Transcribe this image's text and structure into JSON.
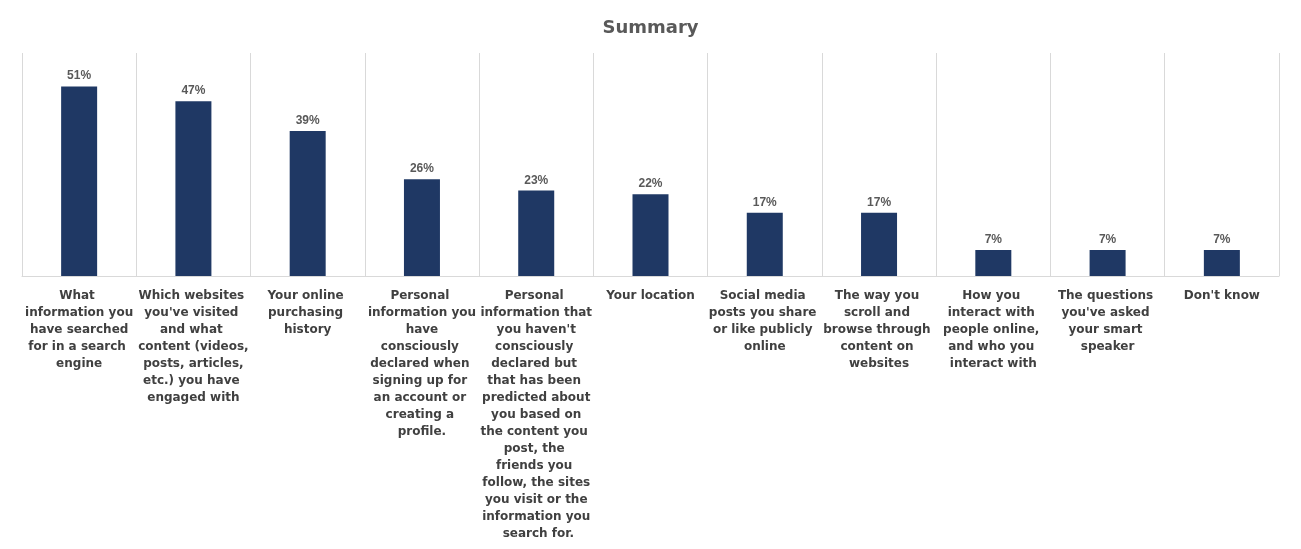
{
  "chart_data": {
    "type": "bar",
    "title": "Summary",
    "categories": [
      "What information you have searched for in a search engine",
      "Which websites you've visited and what content (videos, posts, articles, etc.) you have engaged with",
      "Your online purchasing history",
      "Personal information you have consciously declared when signing up for an account or creating a profile.",
      "Personal information that you haven't consciously declared but that has been predicted about you based on the content you post, the friends you follow, the sites you visit or the information you search for.",
      "Your location",
      "Social media posts you share or like publicly online",
      "The way you scroll and browse through content on websites",
      "How you interact with people online, and who you interact with",
      "The questions you've asked your smart speaker",
      "Don't know"
    ],
    "values": [
      51,
      47,
      39,
      26,
      23,
      22,
      17,
      17,
      7,
      7,
      7
    ],
    "value_labels": [
      "51%",
      "47%",
      "39%",
      "26%",
      "23%",
      "22%",
      "17%",
      "17%",
      "7%",
      "7%",
      "7%"
    ],
    "color": "#1f3864",
    "grid": "x"
  }
}
